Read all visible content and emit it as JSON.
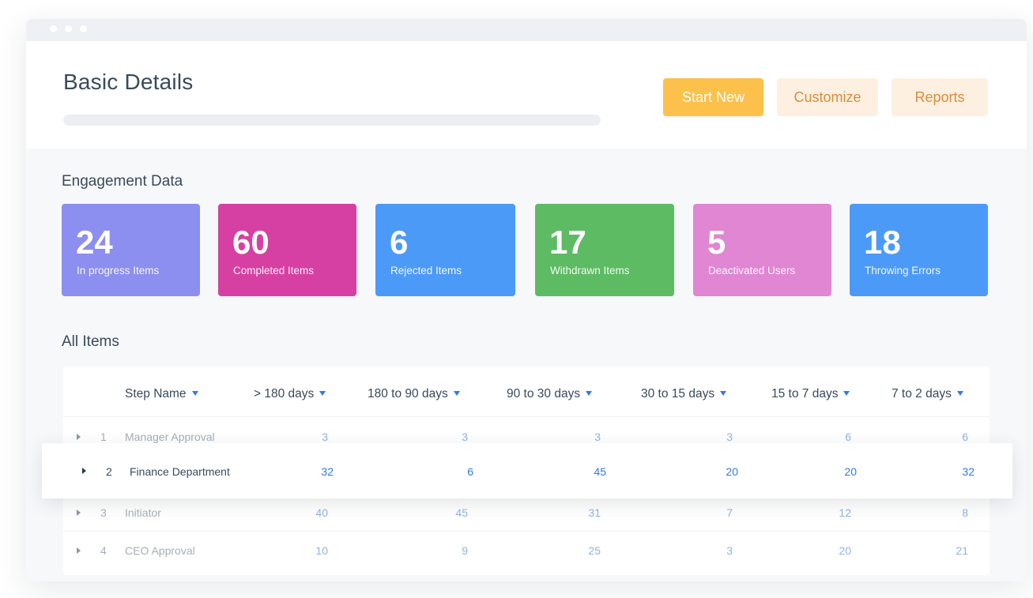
{
  "header": {
    "title": "Basic Details",
    "buttons": {
      "start_new": "Start New",
      "customize": "Customize",
      "reports": "Reports"
    }
  },
  "engagement": {
    "title": "Engagement Data",
    "cards": [
      {
        "value": "24",
        "label": "In progress Items",
        "color": "#8c8ef0"
      },
      {
        "value": "60",
        "label": "Completed Items",
        "color": "#d740a3"
      },
      {
        "value": "6",
        "label": "Rejected Items",
        "color": "#4c9af8"
      },
      {
        "value": "17",
        "label": "Withdrawn Items",
        "color": "#5dbb63"
      },
      {
        "value": "5",
        "label": "Deactivated Users",
        "color": "#e086d3"
      },
      {
        "value": "18",
        "label": "Throwing Errors",
        "color": "#4c9af8"
      }
    ]
  },
  "items": {
    "title": "All Items",
    "columns": [
      "Step Name",
      "> 180 days",
      "180 to 90 days",
      "90 to 30 days",
      "30 to 15 days",
      "15 to 7 days",
      "7 to 2 days"
    ],
    "rows": [
      {
        "index": "1",
        "name": "Manager Approval",
        "values": [
          "3",
          "3",
          "3",
          "3",
          "6",
          "6"
        ]
      },
      {
        "index": "2",
        "name": "Finance Department",
        "values": [
          "32",
          "6",
          "45",
          "20",
          "20",
          "32"
        ]
      },
      {
        "index": "3",
        "name": "Initiator",
        "values": [
          "40",
          "45",
          "31",
          "7",
          "12",
          "8"
        ]
      },
      {
        "index": "4",
        "name": "CEO Approval",
        "values": [
          "10",
          "9",
          "25",
          "3",
          "20",
          "21"
        ]
      }
    ]
  }
}
